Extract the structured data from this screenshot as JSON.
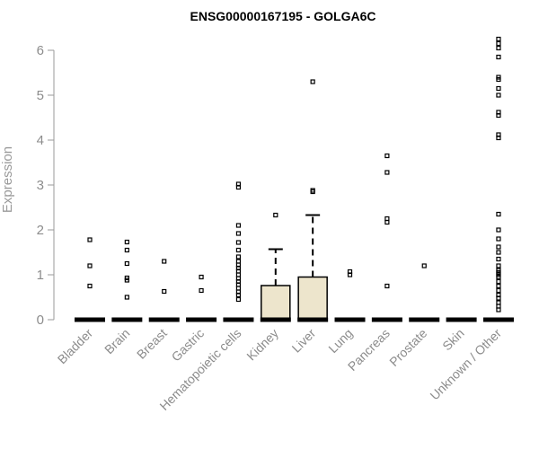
{
  "chart_data": {
    "type": "box",
    "title": "ENSG00000167195 - GOLGA6C",
    "xlabel": "",
    "ylabel": "Expression",
    "ylim": [
      0,
      6.2
    ],
    "yticks": [
      0,
      1,
      2,
      3,
      4,
      5,
      6
    ],
    "grid": false,
    "colors": {
      "box_fill": "#ede5cc",
      "stroke": "#000000",
      "axis": "#9a9a9a"
    },
    "categories": [
      "Bladder",
      "Brain",
      "Breast",
      "Gastric",
      "Hematopoietic cells",
      "Kidney",
      "Liver",
      "Lung",
      "Pancreas",
      "Prostate",
      "Skin",
      "Unknown / Other"
    ],
    "boxes": [
      {
        "category": "Bladder",
        "q1": 0,
        "median": 0,
        "q3": 0,
        "whisker_low": 0,
        "whisker_high": 0,
        "outliers": [
          0.75,
          1.2,
          1.78
        ]
      },
      {
        "category": "Brain",
        "q1": 0,
        "median": 0,
        "q3": 0,
        "whisker_low": 0,
        "whisker_high": 0,
        "outliers": [
          0.5,
          0.88,
          0.93,
          1.25,
          1.55,
          1.73
        ]
      },
      {
        "category": "Breast",
        "q1": 0,
        "median": 0,
        "q3": 0,
        "whisker_low": 0,
        "whisker_high": 0,
        "outliers": [
          0.63,
          1.3
        ]
      },
      {
        "category": "Gastric",
        "q1": 0,
        "median": 0,
        "q3": 0,
        "whisker_low": 0,
        "whisker_high": 0,
        "outliers": [
          0.65,
          0.95
        ]
      },
      {
        "category": "Hematopoietic cells",
        "q1": 0,
        "median": 0,
        "q3": 0,
        "whisker_low": 0,
        "whisker_high": 0,
        "outliers": [
          0.45,
          0.55,
          0.62,
          0.7,
          0.78,
          0.85,
          0.92,
          1.0,
          1.08,
          1.15,
          1.22,
          1.3,
          1.4,
          1.55,
          1.72,
          1.92,
          2.1,
          2.95,
          3.02
        ]
      },
      {
        "category": "Kidney",
        "q1": 0,
        "median": 0,
        "q3": 0.76,
        "whisker_low": 0,
        "whisker_high": 1.57,
        "outliers": [
          2.33
        ]
      },
      {
        "category": "Liver",
        "q1": 0,
        "median": 0,
        "q3": 0.95,
        "whisker_low": 0,
        "whisker_high": 2.33,
        "outliers": [
          2.85,
          2.88,
          5.3
        ]
      },
      {
        "category": "Lung",
        "q1": 0,
        "median": 0,
        "q3": 0,
        "whisker_low": 0,
        "whisker_high": 0,
        "outliers": [
          1.0,
          1.07
        ]
      },
      {
        "category": "Pancreas",
        "q1": 0,
        "median": 0,
        "q3": 0,
        "whisker_low": 0,
        "whisker_high": 0,
        "outliers": [
          0.75,
          2.17,
          2.25,
          3.28,
          3.65
        ]
      },
      {
        "category": "Prostate",
        "q1": 0,
        "median": 0,
        "q3": 0,
        "whisker_low": 0,
        "whisker_high": 0,
        "outliers": [
          1.2
        ]
      },
      {
        "category": "Skin",
        "q1": 0,
        "median": 0,
        "q3": 0,
        "whisker_low": 0,
        "whisker_high": 0,
        "outliers": []
      },
      {
        "category": "Unknown / Other",
        "q1": 0,
        "median": 0,
        "q3": 0,
        "whisker_low": 0,
        "whisker_high": 0,
        "outliers": [
          0.22,
          0.3,
          0.38,
          0.48,
          0.55,
          0.65,
          0.75,
          0.85,
          0.95,
          1.0,
          1.05,
          1.1,
          1.2,
          1.35,
          1.5,
          1.62,
          1.8,
          2.0,
          2.35,
          4.05,
          4.12,
          4.55,
          4.62,
          5.0,
          5.15,
          5.35,
          5.4,
          5.85,
          6.05,
          6.15,
          6.25
        ]
      }
    ]
  }
}
